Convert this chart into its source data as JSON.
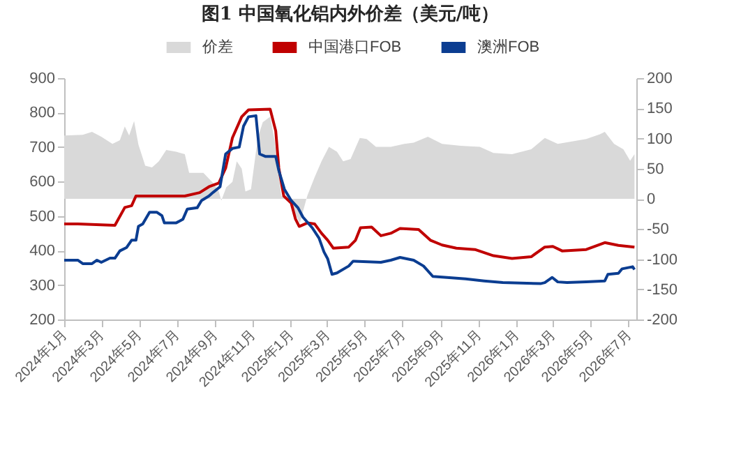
{
  "chart_data": {
    "type": "line",
    "title": "图1 中国氧化铝内外价差（美元/吨）",
    "xlim": [
      "2024-01-01",
      "2026-07-14"
    ],
    "xticks": [
      {
        "value": "2024-01",
        "label": "2024年1月"
      },
      {
        "value": "2024-03",
        "label": "2024年3月"
      },
      {
        "value": "2024-05",
        "label": "2024年5月"
      },
      {
        "value": "2024-07",
        "label": "2024年7月"
      },
      {
        "value": "2024-09",
        "label": "2024年9月"
      },
      {
        "value": "2024-11",
        "label": "2024年11月"
      },
      {
        "value": "2025-01",
        "label": "2025年1月"
      },
      {
        "value": "2025-03",
        "label": "2025年3月"
      },
      {
        "value": "2025-05",
        "label": "2025年5月"
      },
      {
        "value": "2025-07",
        "label": "2025年7月"
      },
      {
        "value": "2025-09",
        "label": "2025年9月"
      },
      {
        "value": "2025-11",
        "label": "2025年11月"
      },
      {
        "value": "2026-01",
        "label": "2026年1月"
      },
      {
        "value": "2026-03",
        "label": "2026年3月"
      },
      {
        "value": "2026-05",
        "label": "2026年5月"
      },
      {
        "value": "2026-07",
        "label": "2026年7月"
      }
    ],
    "ylim": [
      200,
      900
    ],
    "yticks": [
      200,
      300,
      400,
      500,
      600,
      700,
      800,
      900
    ],
    "y2lim": [
      -200,
      200
    ],
    "y2ticks": [
      -200,
      -150,
      -100,
      -50,
      0,
      50,
      100,
      150,
      200
    ],
    "legend": "top",
    "grid": false,
    "series": [
      {
        "name": "价差",
        "type": "area",
        "axis": "y2",
        "color": "#d9d9d9",
        "x": [
          "2024-01-01",
          "2024-01-31",
          "2024-02-15",
          "2024-03-01",
          "2024-03-19",
          "2024-03-31",
          "2024-04-08",
          "2024-04-15",
          "2024-04-23",
          "2024-04-30",
          "2024-05-11",
          "2024-05-22",
          "2024-06-02",
          "2024-06-14",
          "2024-06-30",
          "2024-07-14",
          "2024-07-21",
          "2024-08-13",
          "2024-08-29",
          "2024-09-07",
          "2024-09-11",
          "2024-09-19",
          "2024-09-29",
          "2024-10-06",
          "2024-10-14",
          "2024-10-20",
          "2024-10-29",
          "2024-11-09",
          "2024-11-17",
          "2024-11-29",
          "2024-12-06",
          "2024-12-17",
          "2024-12-29",
          "2025-01-09",
          "2025-01-16",
          "2025-01-28",
          "2025-02-09",
          "2025-02-20",
          "2025-03-04",
          "2025-03-17",
          "2025-03-27",
          "2025-04-08",
          "2025-04-23",
          "2025-05-04",
          "2025-05-19",
          "2025-06-12",
          "2025-07-04",
          "2025-07-19",
          "2025-08-11",
          "2025-09-03",
          "2025-10-03",
          "2025-11-03",
          "2025-11-25",
          "2025-12-25",
          "2026-01-25",
          "2026-02-16",
          "2026-03-09",
          "2026-04-01",
          "2026-04-24",
          "2026-05-16",
          "2026-05-24",
          "2026-06-08",
          "2026-06-23",
          "2026-07-04",
          "2026-07-11"
        ],
        "values": [
          105,
          106,
          111,
          103,
          91,
          97,
          120,
          105,
          129,
          90,
          55,
          52,
          62,
          81,
          78,
          74,
          43,
          43,
          26,
          12,
          -3,
          19,
          28,
          62,
          50,
          12,
          16,
          101,
          127,
          136,
          97,
          5,
          -3,
          -26,
          -40,
          5,
          36,
          62,
          86,
          78,
          62,
          66,
          101,
          99,
          86,
          86,
          91,
          93,
          103,
          91,
          88,
          86,
          76,
          74,
          82,
          101,
          91,
          95,
          99,
          107,
          111,
          91,
          82,
          63,
          74
        ]
      },
      {
        "name": "中国港口FOB",
        "color": "#c00000",
        "x": [
          "2024-01-01",
          "2024-01-23",
          "2024-03-23",
          "2024-04-08",
          "2024-04-19",
          "2024-04-26",
          "2024-07-14",
          "2024-08-07",
          "2024-08-22",
          "2024-09-07",
          "2024-09-18",
          "2024-09-29",
          "2024-10-14",
          "2024-10-25",
          "2024-11-29",
          "2024-12-08",
          "2024-12-13",
          "2024-12-21",
          "2025-01-02",
          "2025-01-09",
          "2025-01-15",
          "2025-01-28",
          "2025-02-09",
          "2025-02-20",
          "2025-03-02",
          "2025-03-11",
          "2025-04-05",
          "2025-04-16",
          "2025-04-24",
          "2025-05-12",
          "2025-05-27",
          "2025-06-12",
          "2025-06-27",
          "2025-07-27",
          "2025-08-15",
          "2025-09-03",
          "2025-09-26",
          "2025-10-26",
          "2025-11-25",
          "2025-12-25",
          "2026-01-25",
          "2026-02-16",
          "2026-03-01",
          "2026-03-16",
          "2026-04-24",
          "2026-05-24",
          "2026-06-15",
          "2026-07-11"
        ],
        "values": [
          477,
          477,
          473,
          525,
          530,
          558,
          558,
          568,
          585,
          596,
          639,
          727,
          788,
          808,
          810,
          747,
          639,
          558,
          538,
          491,
          470,
          480,
          477,
          450,
          430,
          407,
          410,
          430,
          466,
          468,
          443,
          450,
          464,
          461,
          430,
          416,
          407,
          403,
          385,
          377,
          382,
          410,
          412,
          399,
          403,
          423,
          415,
          410
        ]
      },
      {
        "name": "澳洲FOB",
        "color": "#0b3d91",
        "x": [
          "2024-01-01",
          "2024-01-23",
          "2024-01-31",
          "2024-02-15",
          "2024-02-23",
          "2024-03-01",
          "2024-03-15",
          "2024-03-23",
          "2024-03-31",
          "2024-04-11",
          "2024-04-19",
          "2024-04-26",
          "2024-04-30",
          "2024-05-07",
          "2024-05-18",
          "2024-05-30",
          "2024-06-07",
          "2024-06-11",
          "2024-06-30",
          "2024-07-11",
          "2024-07-18",
          "2024-08-03",
          "2024-08-10",
          "2024-08-22",
          "2024-08-29",
          "2024-09-09",
          "2024-09-18",
          "2024-09-29",
          "2024-10-10",
          "2024-10-17",
          "2024-10-25",
          "2024-11-06",
          "2024-11-12",
          "2024-11-21",
          "2024-12-08",
          "2024-12-13",
          "2024-12-22",
          "2025-01-02",
          "2025-01-13",
          "2025-01-21",
          "2025-02-05",
          "2025-02-16",
          "2025-02-24",
          "2025-03-02",
          "2025-03-09",
          "2025-03-17",
          "2025-04-05",
          "2025-04-12",
          "2025-05-27",
          "2025-06-12",
          "2025-06-27",
          "2025-07-19",
          "2025-08-04",
          "2025-08-19",
          "2025-09-11",
          "2025-10-11",
          "2025-11-10",
          "2025-12-10",
          "2026-02-09",
          "2026-02-16",
          "2026-02-28",
          "2026-03-09",
          "2026-03-24",
          "2026-04-24",
          "2026-05-24",
          "2026-05-29",
          "2026-06-15",
          "2026-06-21",
          "2026-07-08",
          "2026-07-11"
        ],
        "values": [
          372,
          372,
          362,
          362,
          372,
          366,
          378,
          378,
          399,
          409,
          430,
          430,
          470,
          477,
          511,
          511,
          501,
          480,
          480,
          491,
          520,
          524,
          545,
          558,
          569,
          585,
          680,
          696,
          700,
          761,
          788,
          791,
          680,
          673,
          673,
          632,
          578,
          545,
          524,
          497,
          466,
          436,
          396,
          376,
          331,
          335,
          355,
          369,
          366,
          372,
          380,
          372,
          355,
          325,
          322,
          318,
          312,
          307,
          304,
          307,
          322,
          309,
          307,
          309,
          312,
          331,
          334,
          347,
          353,
          345
        ]
      }
    ]
  }
}
